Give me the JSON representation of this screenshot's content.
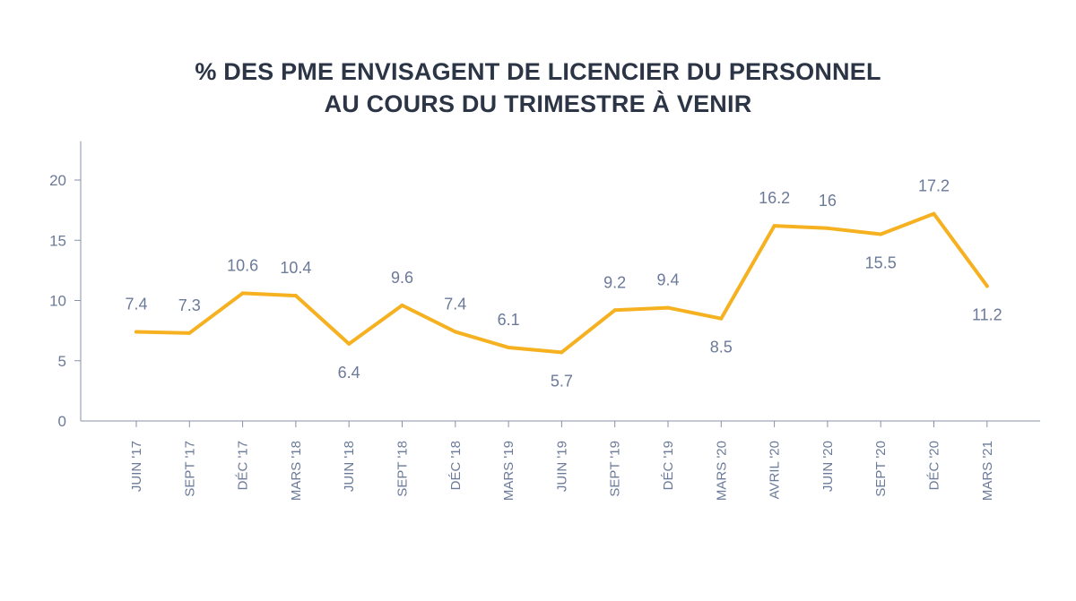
{
  "chart_data": {
    "type": "line",
    "title_lines": [
      "% DES PME ENVISAGENT DE LICENCIER DU PERSONNEL",
      "AU COURS DU TRIMESTRE À VENIR"
    ],
    "categories": [
      "JUIN '17",
      "SEPT '17",
      "DÉC '17",
      "MARS '18",
      "JUIN '18",
      "SEPT '18",
      "DÉC '18",
      "MARS '19",
      "JUIN '19",
      "SEPT '19",
      "DÉC '19",
      "MARS '20",
      "AVRIL '20",
      "JUIN '20",
      "SEPT '20",
      "DÉC '20",
      "MARS '21"
    ],
    "values": [
      7.4,
      7.3,
      10.6,
      10.4,
      6.4,
      9.6,
      7.4,
      6.1,
      5.7,
      9.2,
      9.4,
      8.5,
      16.2,
      16,
      15.5,
      17.2,
      11.2
    ],
    "data_labels": [
      "7.4",
      "7.3",
      "10.6",
      "10.4",
      "6.4",
      "9.6",
      "7.4",
      "6.1",
      "5.7",
      "9.2",
      "9.4",
      "8.5",
      "16.2",
      "16",
      "15.5",
      "17.2",
      "11.2"
    ],
    "label_positions": [
      "above",
      "above",
      "above",
      "above",
      "below",
      "above",
      "above",
      "above",
      "below",
      "above",
      "above",
      "below",
      "above",
      "above",
      "below",
      "above",
      "below"
    ],
    "yticks": [
      0,
      5,
      10,
      15,
      20
    ],
    "ylim": [
      0,
      23
    ],
    "xlabel": "",
    "ylabel": "",
    "grid": false,
    "legend": "none",
    "colors": {
      "line": "#f5b120",
      "axis": "#8792a8",
      "label": "#6b7a99",
      "title": "#2c3545"
    }
  }
}
